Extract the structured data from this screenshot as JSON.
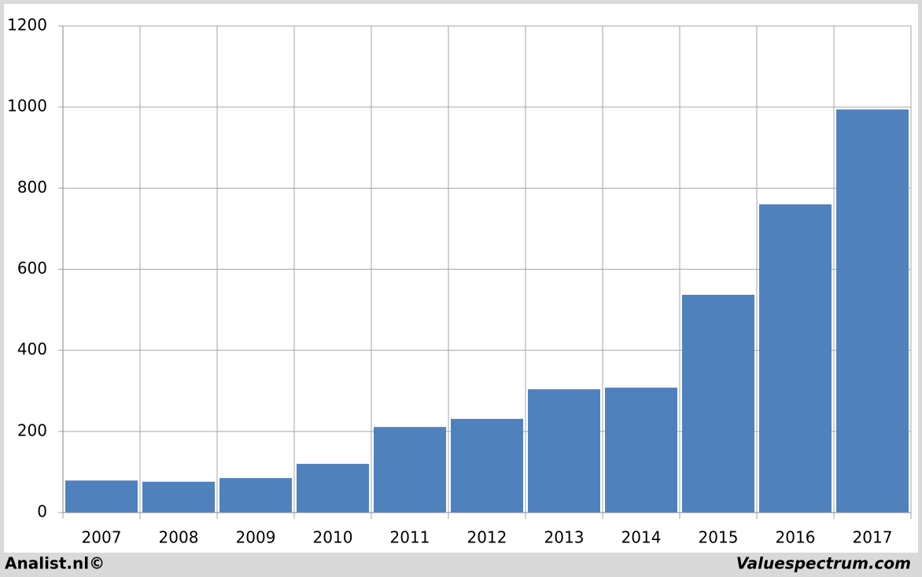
{
  "chart_data": {
    "type": "bar",
    "categories": [
      "2007",
      "2008",
      "2009",
      "2010",
      "2011",
      "2012",
      "2013",
      "2014",
      "2015",
      "2016",
      "2017"
    ],
    "values": [
      79,
      76,
      85,
      120,
      211,
      231,
      304,
      308,
      537,
      760,
      994
    ],
    "color": "#4f81bd",
    "ylim": [
      0,
      1200
    ],
    "yticks": [
      0,
      200,
      400,
      600,
      800,
      1000,
      1200
    ],
    "grid": true,
    "footer_left": "Analist.nl©",
    "footer_right": "Valuespectrum.com"
  }
}
